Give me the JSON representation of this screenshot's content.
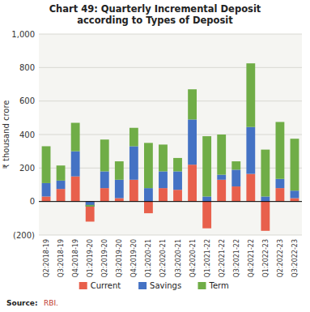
{
  "chart_data": {
    "type": "bar",
    "stacked": true,
    "title": "Chart 49: Quarterly Incremental Deposit\naccording to Types of Deposit",
    "ylabel": "₹ thousand crore",
    "categories": [
      "Q2:2018-19",
      "Q3:2018-19",
      "Q4:2018-19",
      "Q1:2019-20",
      "Q2:2019-20",
      "Q3:2019-20",
      "Q4:2019-20",
      "Q1:2020-21",
      "Q2:2020-21",
      "Q3:2020-21",
      "Q4:2020-21",
      "Q1:2021-22",
      "Q2:2021-22",
      "Q3:2021-22",
      "Q4:2021-22",
      "Q1:2022-23",
      "Q2:2022-23",
      "Q3:2022-23"
    ],
    "series": [
      {
        "name": "Current",
        "color": "#e8604c",
        "values": [
          30,
          75,
          150,
          -120,
          80,
          20,
          130,
          -70,
          80,
          70,
          220,
          -160,
          130,
          90,
          165,
          -175,
          80,
          20
        ]
      },
      {
        "name": "Savings",
        "color": "#4472c4",
        "values": [
          80,
          50,
          150,
          -30,
          100,
          110,
          200,
          80,
          100,
          110,
          270,
          30,
          30,
          100,
          280,
          30,
          55,
          45
        ]
      },
      {
        "name": "Term",
        "color": "#70ad47",
        "values": [
          220,
          90,
          170,
          10,
          190,
          110,
          110,
          270,
          160,
          80,
          180,
          360,
          240,
          50,
          380,
          280,
          340,
          310
        ]
      }
    ],
    "ylim": [
      -200,
      1000
    ],
    "yticks": [
      {
        "value": -200,
        "label": "(200)"
      },
      0,
      200,
      400,
      600,
      800,
      {
        "value": 1000,
        "label": "1,000"
      }
    ],
    "grid": true,
    "legend": "bottom",
    "annotations": [
      "Source:",
      "RBI."
    ]
  }
}
